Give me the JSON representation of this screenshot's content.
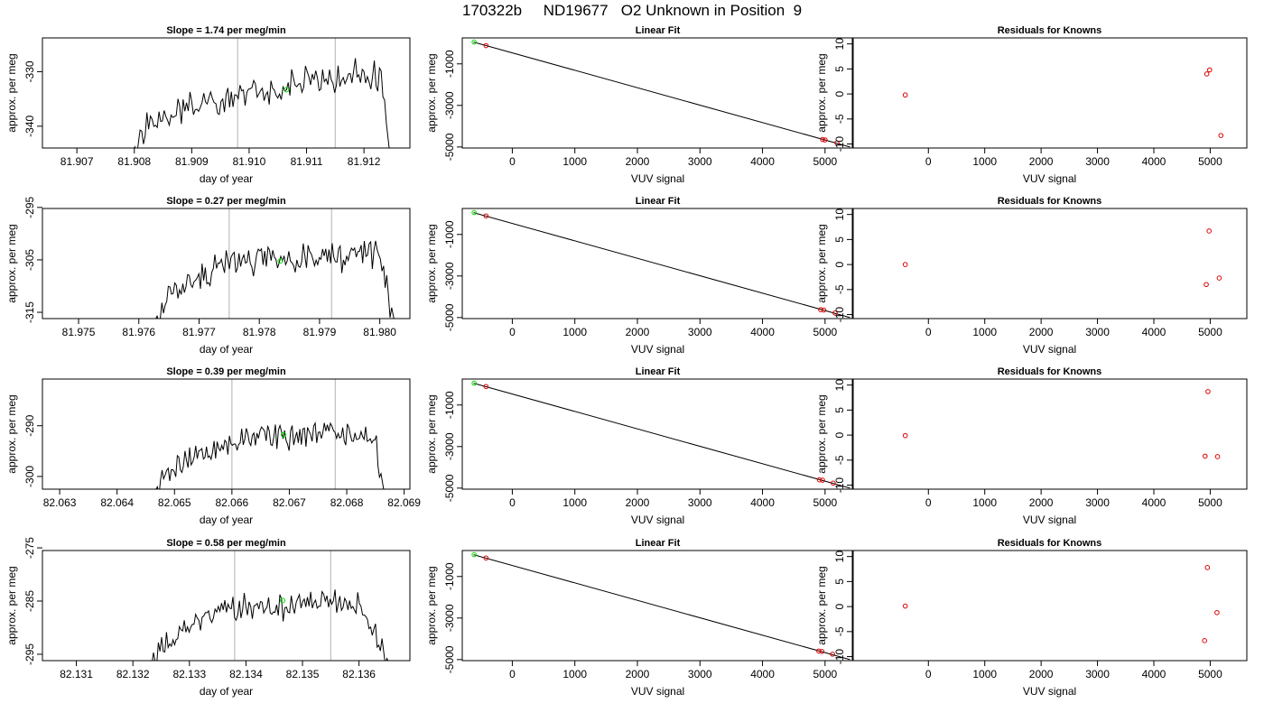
{
  "figure_title": "170322b     ND19677   O2 Unknown in Position  9",
  "colors": {
    "line": "#000000",
    "vertical_marker": "#bebebe",
    "green_point": "#00dd00",
    "red_point": "#dd0000",
    "frame": "#000000"
  },
  "chart_data": [
    {
      "type": "line",
      "title": "Slope =  1.74  per meg/min",
      "xlabel": "day of year",
      "ylabel": "approx. per meg",
      "xticks": [
        "81.907",
        "81.908",
        "81.909",
        "81.910",
        "81.911",
        "81.912"
      ],
      "yticks": [
        "-330",
        "-340"
      ],
      "xlim": [
        81.9064,
        81.9128
      ],
      "ylim": [
        -344,
        -323.8
      ],
      "vlines": [
        81.9098,
        81.9115
      ],
      "line_range": [
        81.90795,
        81.91245
      ],
      "line_y_start": -345,
      "line_y_end": -345,
      "line_profile": [
        [
          81.90795,
          -345
        ],
        [
          81.9082,
          -340
        ],
        [
          81.9086,
          -338
        ],
        [
          81.909,
          -336.5
        ],
        [
          81.9095,
          -335.5
        ],
        [
          81.91,
          -334
        ],
        [
          81.9105,
          -333
        ],
        [
          81.911,
          -331.5
        ],
        [
          81.9114,
          -332
        ],
        [
          81.9118,
          -330
        ],
        [
          81.9123,
          -331
        ],
        [
          81.91245,
          -345
        ]
      ],
      "noise_amp": 2.2,
      "green_point": [
        81.91065,
        -333.3
      ],
      "seed": 11
    },
    {
      "type": "scatter",
      "title": "Linear Fit",
      "xlabel": "VUV signal",
      "ylabel": "approx. per meg",
      "xticks": [
        "0",
        "1000",
        "2000",
        "3000",
        "4000",
        "5000"
      ],
      "yticks": [
        "-1000",
        "-3000",
        "-5000"
      ],
      "xlim": [
        -800,
        5450
      ],
      "ylim": [
        -5050,
        250
      ],
      "fit_line": [
        [
          -620,
          50
        ],
        [
          5400,
          -5000
        ]
      ],
      "red_points": [
        [
          -420,
          -120
        ],
        [
          4960,
          -4640
        ],
        [
          5000,
          -4660
        ],
        [
          5190,
          -4800
        ]
      ],
      "green_points": [
        [
          -610,
          50
        ]
      ]
    },
    {
      "type": "scatter",
      "title": "Residuals for Knowns",
      "xlabel": "VUV signal",
      "ylabel": "",
      "xticks": [
        "0",
        "1000",
        "2000",
        "3000",
        "4000",
        "5000"
      ],
      "yticks": [
        "10",
        "5",
        "0",
        "-5",
        "-10"
      ],
      "xlim": [
        -1350,
        5650
      ],
      "ylim": [
        -10.8,
        11.2
      ],
      "red_points": [
        [
          -410,
          -0.2
        ],
        [
          4940,
          4.0
        ],
        [
          4990,
          4.8
        ],
        [
          5190,
          -8.3
        ]
      ]
    },
    {
      "type": "line",
      "title": "Slope =  0.27  per meg/min",
      "xlabel": "day of year",
      "ylabel": "approx. per meg",
      "xticks": [
        "81.975",
        "81.976",
        "81.977",
        "81.978",
        "81.979",
        "81.980"
      ],
      "yticks": [
        "-295",
        "-305",
        "-315"
      ],
      "xlim": [
        81.9744,
        81.9805
      ],
      "ylim": [
        -316.2,
        -295.2
      ],
      "vlines": [
        81.9775,
        81.9792
      ],
      "line_range": [
        81.97625,
        81.98025
      ],
      "line_y_start": -317,
      "line_y_end": -317,
      "line_profile": [
        [
          81.97625,
          -317
        ],
        [
          81.9765,
          -311
        ],
        [
          81.977,
          -308.5
        ],
        [
          81.9775,
          -306
        ],
        [
          81.978,
          -304.5
        ],
        [
          81.9785,
          -305
        ],
        [
          81.979,
          -304
        ],
        [
          81.9795,
          -304.5
        ],
        [
          81.98,
          -303.5
        ],
        [
          81.98025,
          -317
        ]
      ],
      "noise_amp": 2.5,
      "green_point": [
        81.97835,
        -305.2
      ],
      "seed": 23
    },
    {
      "type": "scatter",
      "title": "Linear Fit",
      "xlabel": "VUV signal",
      "ylabel": "approx. per meg",
      "xticks": [
        "0",
        "1000",
        "2000",
        "3000",
        "4000",
        "5000"
      ],
      "yticks": [
        "-1000",
        "-3000",
        "-5000"
      ],
      "xlim": [
        -800,
        5450
      ],
      "ylim": [
        -5050,
        250
      ],
      "fit_line": [
        [
          -620,
          50
        ],
        [
          5400,
          -5000
        ]
      ],
      "red_points": [
        [
          -420,
          -110
        ],
        [
          4930,
          -4620
        ],
        [
          4980,
          -4640
        ],
        [
          5160,
          -4780
        ]
      ],
      "green_points": [
        [
          -610,
          50
        ]
      ]
    },
    {
      "type": "scatter",
      "title": "Residuals for Knowns",
      "xlabel": "VUV signal",
      "ylabel": "",
      "xticks": [
        "0",
        "1000",
        "2000",
        "3000",
        "4000",
        "5000"
      ],
      "yticks": [
        "10",
        "5",
        "0",
        "-5",
        "-10"
      ],
      "xlim": [
        -1350,
        5650
      ],
      "ylim": [
        -10.8,
        11.2
      ],
      "red_points": [
        [
          -410,
          0.0
        ],
        [
          4930,
          -4.0
        ],
        [
          4980,
          6.7
        ],
        [
          5160,
          -2.7
        ]
      ]
    },
    {
      "type": "line",
      "title": "Slope =  0.39  per meg/min",
      "xlabel": "day of year",
      "ylabel": "approx. per meg",
      "xticks": [
        "82.063",
        "82.064",
        "82.065",
        "82.066",
        "82.067",
        "82.068",
        "82.069"
      ],
      "yticks": [
        "-290",
        "-300"
      ],
      "xlim": [
        82.0627,
        82.0691
      ],
      "ylim": [
        -302.5,
        -280.8
      ],
      "vlines": [
        82.066,
        82.0678
      ],
      "line_range": [
        82.06465,
        82.06865
      ],
      "line_y_start": -303,
      "line_y_end": -303,
      "line_profile": [
        [
          82.06465,
          -303
        ],
        [
          82.0649,
          -298.5
        ],
        [
          82.0655,
          -295.5
        ],
        [
          82.066,
          -293.5
        ],
        [
          82.0665,
          -291.5
        ],
        [
          82.067,
          -292.5
        ],
        [
          82.0675,
          -291
        ],
        [
          82.068,
          -291.5
        ],
        [
          82.0685,
          -293
        ],
        [
          82.06865,
          -303
        ]
      ],
      "noise_amp": 2.0,
      "green_point": [
        82.0669,
        -291.8
      ],
      "seed": 37
    },
    {
      "type": "scatter",
      "title": "Linear Fit",
      "xlabel": "VUV signal",
      "ylabel": "approx. per meg",
      "xticks": [
        "0",
        "1000",
        "2000",
        "3000",
        "4000",
        "5000"
      ],
      "yticks": [
        "-1000",
        "-3000",
        "-5000"
      ],
      "xlim": [
        -800,
        5450
      ],
      "ylim": [
        -5050,
        250
      ],
      "fit_line": [
        [
          -620,
          50
        ],
        [
          5400,
          -5000
        ]
      ],
      "red_points": [
        [
          -420,
          -110
        ],
        [
          4910,
          -4600
        ],
        [
          4960,
          -4620
        ],
        [
          5130,
          -4760
        ]
      ],
      "green_points": [
        [
          -610,
          50
        ]
      ]
    },
    {
      "type": "scatter",
      "title": "Residuals for Knowns",
      "xlabel": "VUV signal",
      "ylabel": "",
      "xticks": [
        "0",
        "1000",
        "2000",
        "3000",
        "4000",
        "5000"
      ],
      "yticks": [
        "10",
        "5",
        "0",
        "-5",
        "-10"
      ],
      "xlim": [
        -1350,
        5650
      ],
      "ylim": [
        -10.8,
        11.2
      ],
      "red_points": [
        [
          -410,
          -0.1
        ],
        [
          4910,
          -4.2
        ],
        [
          4960,
          8.7
        ],
        [
          5130,
          -4.3
        ]
      ]
    },
    {
      "type": "line",
      "title": "Slope =  0.58  per meg/min",
      "xlabel": "day of year",
      "ylabel": "approx. per meg",
      "xticks": [
        "82.131",
        "82.132",
        "82.133",
        "82.134",
        "82.135",
        "82.136"
      ],
      "yticks": [
        "-275",
        "-285",
        "-295"
      ],
      "xlim": [
        82.1304,
        82.1369
      ],
      "ylim": [
        -296.2,
        -275.5
      ],
      "vlines": [
        82.1338,
        82.1355
      ],
      "line_range": [
        82.13225,
        82.13655
      ],
      "line_y_start": -297,
      "line_y_end": -297,
      "line_profile": [
        [
          82.13225,
          -297
        ],
        [
          82.1325,
          -293.5
        ],
        [
          82.133,
          -289.5
        ],
        [
          82.1335,
          -287
        ],
        [
          82.134,
          -286
        ],
        [
          82.1345,
          -286.5
        ],
        [
          82.135,
          -285.5
        ],
        [
          82.1355,
          -285
        ],
        [
          82.136,
          -285.5
        ],
        [
          82.13655,
          -297
        ]
      ],
      "noise_amp": 2.0,
      "green_point": [
        82.13465,
        -284.9
      ],
      "seed": 53
    },
    {
      "type": "scatter",
      "title": "Linear Fit",
      "xlabel": "VUV signal",
      "ylabel": "approx. per meg",
      "xticks": [
        "0",
        "1000",
        "2000",
        "3000",
        "4000",
        "5000"
      ],
      "yticks": [
        "-1000",
        "-3000",
        "-5000"
      ],
      "xlim": [
        -800,
        5450
      ],
      "ylim": [
        -5050,
        250
      ],
      "fit_line": [
        [
          -620,
          50
        ],
        [
          5400,
          -5000
        ]
      ],
      "red_points": [
        [
          -420,
          -110
        ],
        [
          4900,
          -4590
        ],
        [
          4950,
          -4610
        ],
        [
          5120,
          -4740
        ]
      ],
      "green_points": [
        [
          -610,
          50
        ]
      ]
    },
    {
      "type": "scatter",
      "title": "Residuals for Knowns",
      "xlabel": "VUV signal",
      "ylabel": "",
      "xticks": [
        "0",
        "1000",
        "2000",
        "3000",
        "4000",
        "5000"
      ],
      "yticks": [
        "10",
        "5",
        "0",
        "-5",
        "-10"
      ],
      "xlim": [
        -1350,
        5650
      ],
      "ylim": [
        -10.8,
        11.2
      ],
      "red_points": [
        [
          -410,
          0.1
        ],
        [
          4900,
          -6.8
        ],
        [
          4950,
          7.8
        ],
        [
          5120,
          -1.2
        ]
      ]
    }
  ],
  "residual_ylabel": "approx. per meg"
}
